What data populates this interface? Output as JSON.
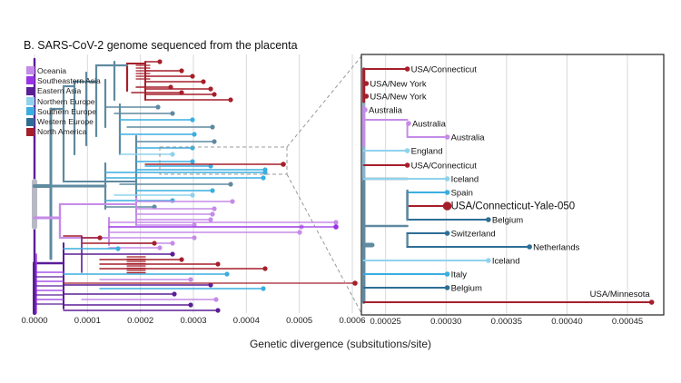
{
  "figure": {
    "title": "B.  SARS-CoV-2 genome sequenced from the placenta",
    "xlabel": "Genetic divergence (subsitutions/site)"
  },
  "legend": [
    {
      "label": "Oceania",
      "color": "#c58be8"
    },
    {
      "label": "Southeastern Asia",
      "color": "#9933e6"
    },
    {
      "label": "Eastern Asia",
      "color": "#5a1e96"
    },
    {
      "label": "Northern Europe",
      "color": "#8fd3ee"
    },
    {
      "label": "Southern Europe",
      "color": "#3aaee0"
    },
    {
      "label": "Western Europe",
      "color": "#2e6e96"
    },
    {
      "label": "North America",
      "color": "#a51f2a"
    }
  ],
  "chart_data": [
    {
      "type": "scatter",
      "name": "full-tree",
      "xlabel": "Genetic divergence (subsitutions/site)",
      "xlim": [
        0,
        0.0006
      ],
      "xticks": [
        "0.0000",
        "0.0001",
        "0.0002",
        "0.0003",
        "0.0004",
        "0.0005",
        "0.0006"
      ],
      "grid": true,
      "note_points": "x = tip divergence (substitutions/site) of a representative subset of tips, colored by region",
      "tips": [
        {
          "region": "North America",
          "x": 0.00024
        },
        {
          "region": "North America",
          "x": 0.00037
        },
        {
          "region": "North America",
          "x": 0.00036
        },
        {
          "region": "North America",
          "x": 0.00033
        },
        {
          "region": "Western Europe",
          "x": 0.0003
        },
        {
          "region": "Western Europe",
          "x": 0.00034
        },
        {
          "region": "Southern Europe",
          "x": 0.00029
        },
        {
          "region": "North America",
          "x": 0.00047
        },
        {
          "region": "Southern Europe",
          "x": 0.00043
        },
        {
          "region": "Oceania",
          "x": 0.00034
        },
        {
          "region": "Southeastern Asia",
          "x": 0.00052
        },
        {
          "region": "Oceania",
          "x": 0.00046
        },
        {
          "region": "Oceania",
          "x": 0.0005
        },
        {
          "region": "North America",
          "x": 0.00044
        },
        {
          "region": "North America",
          "x": 0.00059
        },
        {
          "region": "Eastern Asia",
          "x": 0.00029
        },
        {
          "region": "Oceania",
          "x": 0.00038
        }
      ]
    },
    {
      "type": "scatter",
      "name": "zoomed-clade",
      "xlim": [
        0.00023,
        0.00048
      ],
      "xticks": [
        "0.00025",
        "0.00030",
        "0.00035",
        "0.00040",
        "0.00045"
      ],
      "grid": true,
      "tips": [
        {
          "label": "USA/Connecticut",
          "region": "North America",
          "x": 0.000268
        },
        {
          "label": "USA/New York",
          "region": "North America",
          "x": 0.000234
        },
        {
          "label": "USA/New York",
          "region": "North America",
          "x": 0.000234
        },
        {
          "label": "Australia",
          "region": "Oceania",
          "x": 0.000233
        },
        {
          "label": "Australia",
          "region": "Oceania",
          "x": 0.000269
        },
        {
          "label": "Australia",
          "region": "Oceania",
          "x": 0.000301
        },
        {
          "label": "England",
          "region": "Northern Europe",
          "x": 0.000268
        },
        {
          "label": "USA/Connecticut",
          "region": "North America",
          "x": 0.000268
        },
        {
          "label": "Iceland",
          "region": "Northern Europe",
          "x": 0.000301
        },
        {
          "label": "Spain",
          "region": "Southern Europe",
          "x": 0.000301
        },
        {
          "label": "USA/Connecticut-Yale-050",
          "region": "North America",
          "x": 0.000301,
          "highlight": true
        },
        {
          "label": "Belgium",
          "region": "Western Europe",
          "x": 0.000335
        },
        {
          "label": "Switzerland",
          "region": "Western Europe",
          "x": 0.000301
        },
        {
          "label": "Netherlands",
          "region": "Western Europe",
          "x": 0.000369
        },
        {
          "label": "Iceland",
          "region": "Northern Europe",
          "x": 0.000335
        },
        {
          "label": "Italy",
          "region": "Southern Europe",
          "x": 0.000301
        },
        {
          "label": "Belgium",
          "region": "Western Europe",
          "x": 0.000301
        },
        {
          "label": "USA/Minnesota",
          "region": "North America",
          "x": 0.00047
        }
      ]
    }
  ]
}
